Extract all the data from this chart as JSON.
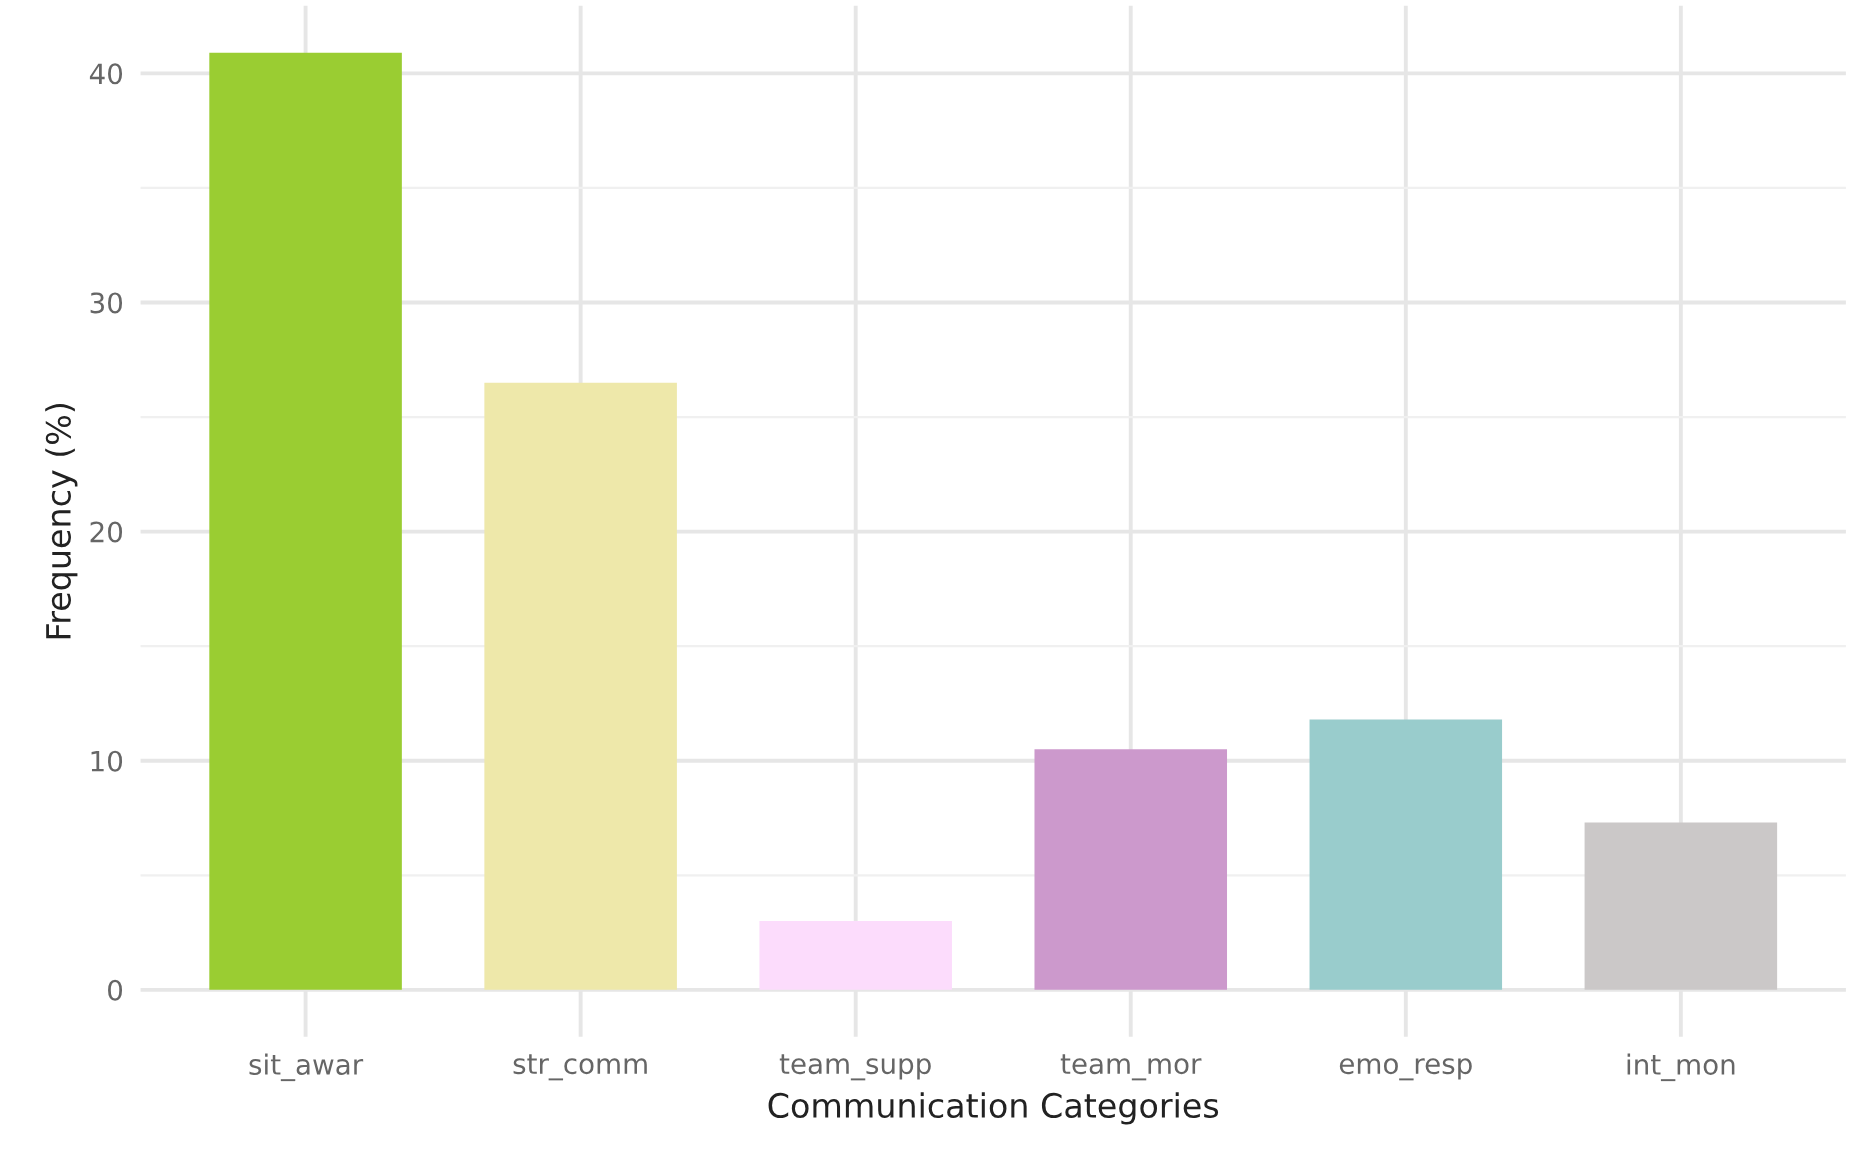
{
  "chart_data": {
    "type": "bar",
    "xlabel": "Communication Categories",
    "ylabel": "Frequency (%)",
    "categories": [
      "sit_awar",
      "str_comm",
      "team_supp",
      "team_mor",
      "emo_resp",
      "int_mon"
    ],
    "values": [
      40.9,
      26.5,
      3.0,
      10.5,
      11.8,
      7.3
    ],
    "colors": [
      "#9acd32",
      "#eee8aa",
      "#fcdcfc",
      "#cc99cc",
      "#99cccc",
      "#cbc8c8"
    ],
    "ylim": [
      -2.05,
      42.95
    ],
    "yticks": [
      0,
      10,
      20,
      30,
      40
    ],
    "grid": true
  }
}
